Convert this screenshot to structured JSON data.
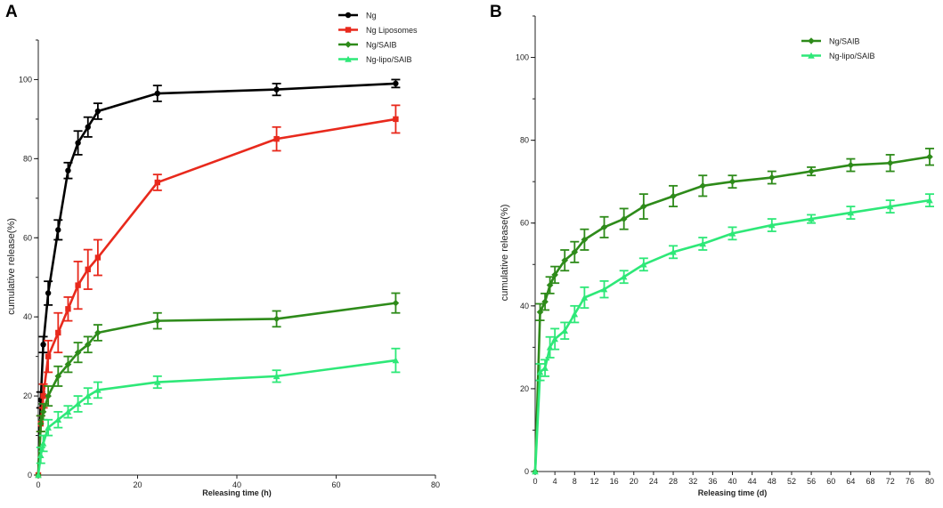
{
  "chart_data": [
    {
      "panel": "A",
      "type": "line",
      "xlabel": "Releasing time  (h)",
      "ylabel": "cumulative release(%)",
      "xlim": [
        0,
        80
      ],
      "ylim": [
        0,
        110
      ],
      "xticks": [
        0,
        20,
        40,
        60,
        80
      ],
      "yticks": [
        0,
        20,
        40,
        60,
        80,
        100
      ],
      "legend_position": "top-center",
      "series": [
        {
          "name": "Ng",
          "color": "#000000",
          "marker": "circle",
          "points": [
            [
              0,
              0
            ],
            [
              0.5,
              19
            ],
            [
              1,
              33
            ],
            [
              2,
              46
            ],
            [
              4,
              62
            ],
            [
              6,
              77
            ],
            [
              8,
              84
            ],
            [
              10,
              88
            ],
            [
              12,
              92
            ],
            [
              24,
              96.5
            ],
            [
              48,
              97.5
            ],
            [
              72,
              99
            ]
          ],
          "errors": [
            0,
            2,
            2,
            3,
            2.5,
            2,
            3,
            2.5,
            2,
            2,
            1.5,
            1
          ]
        },
        {
          "name": "Ng Liposomes",
          "color": "#e8291c",
          "marker": "square",
          "points": [
            [
              0,
              0
            ],
            [
              0.5,
              13
            ],
            [
              1,
              20
            ],
            [
              2,
              30
            ],
            [
              4,
              36
            ],
            [
              6,
              42
            ],
            [
              8,
              48
            ],
            [
              10,
              52
            ],
            [
              12,
              55
            ],
            [
              24,
              74
            ],
            [
              48,
              85
            ],
            [
              72,
              90
            ]
          ],
          "errors": [
            0,
            2,
            3,
            4,
            5,
            3,
            6,
            5,
            4.5,
            2,
            3,
            3.5
          ]
        },
        {
          "name": "Ng/SAIB",
          "color": "#2e8b1a",
          "marker": "diamond",
          "points": [
            [
              0,
              0
            ],
            [
              0.5,
              13
            ],
            [
              1,
              16
            ],
            [
              2,
              20
            ],
            [
              4,
              25
            ],
            [
              6,
              28
            ],
            [
              8,
              31
            ],
            [
              10,
              33
            ],
            [
              12,
              36
            ],
            [
              24,
              39
            ],
            [
              48,
              39.5
            ],
            [
              72,
              43.5
            ]
          ],
          "errors": [
            0,
            2,
            2,
            2.5,
            2.5,
            2,
            2.5,
            2,
            2,
            2,
            2,
            2.5
          ]
        },
        {
          "name": "Ng-lipo/SAIB",
          "color": "#2ee878",
          "marker": "triangle",
          "points": [
            [
              0,
              0
            ],
            [
              0.5,
              5
            ],
            [
              1,
              8
            ],
            [
              2,
              12
            ],
            [
              4,
              14
            ],
            [
              6,
              16
            ],
            [
              8,
              18
            ],
            [
              10,
              20
            ],
            [
              12,
              21.5
            ],
            [
              24,
              23.5
            ],
            [
              48,
              25
            ],
            [
              72,
              29
            ]
          ],
          "errors": [
            0,
            2,
            2,
            2,
            2,
            1.5,
            2,
            2,
            2,
            1.5,
            1.5,
            3
          ]
        }
      ]
    },
    {
      "panel": "B",
      "type": "line",
      "xlabel": "Releasing time (d)",
      "ylabel": "cumulative release(%)",
      "xlim": [
        0,
        80
      ],
      "ylim": [
        0,
        110
      ],
      "xticks": [
        0,
        4,
        8,
        12,
        16,
        20,
        24,
        28,
        32,
        36,
        40,
        44,
        48,
        52,
        56,
        60,
        64,
        68,
        72,
        76,
        80
      ],
      "yticks": [
        0,
        20,
        40,
        60,
        80,
        100
      ],
      "legend_position": "top-right",
      "series": [
        {
          "name": "Ng/SAIB",
          "color": "#2e8b1a",
          "marker": "diamond",
          "points": [
            [
              0,
              0
            ],
            [
              1,
              38.5
            ],
            [
              2,
              41
            ],
            [
              3,
              45
            ],
            [
              4,
              47.5
            ],
            [
              6,
              51
            ],
            [
              8,
              53
            ],
            [
              10,
              56
            ],
            [
              14,
              59
            ],
            [
              18,
              61
            ],
            [
              22,
              64
            ],
            [
              28,
              66.5
            ],
            [
              34,
              69
            ],
            [
              40,
              70
            ],
            [
              48,
              71
            ],
            [
              56,
              72.5
            ],
            [
              64,
              74
            ],
            [
              72,
              74.5
            ],
            [
              80,
              76
            ]
          ],
          "errors": [
            0,
            2,
            2,
            2,
            2,
            2.5,
            2.5,
            2.5,
            2.5,
            2.5,
            3,
            2.5,
            2.5,
            1.5,
            1.5,
            1,
            1.5,
            2,
            2
          ]
        },
        {
          "name": "Ng-lipo/SAIB",
          "color": "#2ee878",
          "marker": "triangle",
          "points": [
            [
              0,
              0
            ],
            [
              1,
              24
            ],
            [
              2,
              25
            ],
            [
              3,
              30
            ],
            [
              4,
              32
            ],
            [
              6,
              34
            ],
            [
              8,
              38
            ],
            [
              10,
              42
            ],
            [
              14,
              44
            ],
            [
              18,
              47
            ],
            [
              22,
              50
            ],
            [
              28,
              53
            ],
            [
              34,
              55
            ],
            [
              40,
              57.5
            ],
            [
              48,
              59.5
            ],
            [
              56,
              61
            ],
            [
              64,
              62.5
            ],
            [
              72,
              64
            ],
            [
              80,
              65.5
            ]
          ],
          "errors": [
            0,
            2,
            2,
            2.5,
            2.5,
            2,
            2,
            2.5,
            2,
            1.5,
            1.5,
            1.5,
            1.5,
            1.5,
            1.5,
            1,
            1.5,
            1.5,
            1.5
          ]
        }
      ]
    }
  ]
}
